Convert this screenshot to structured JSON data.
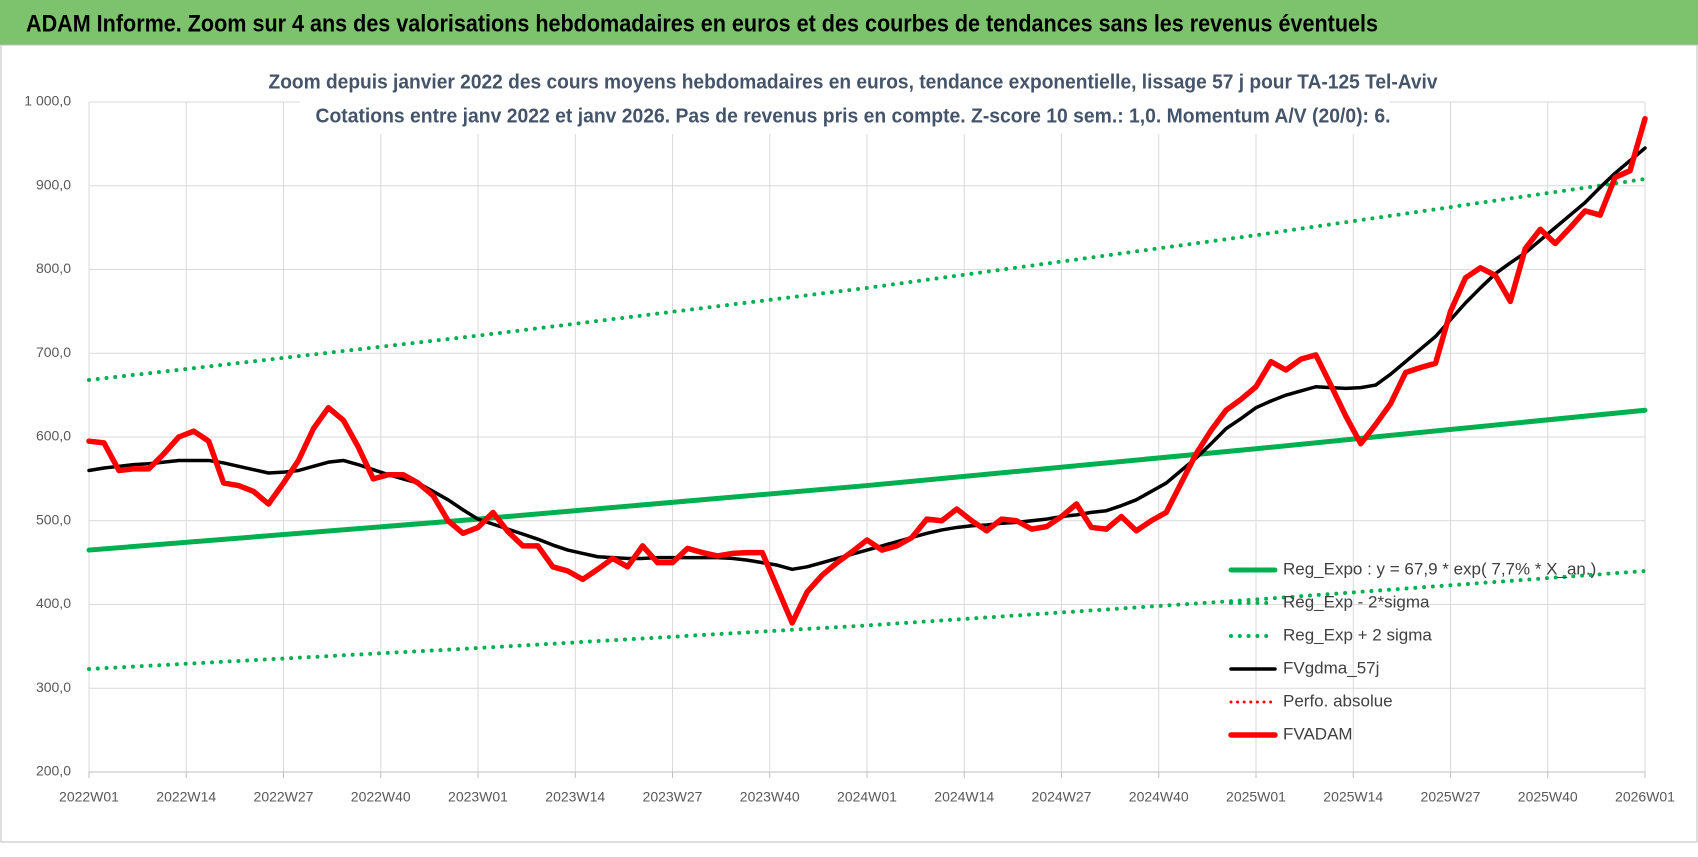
{
  "banner": "ADAM Informe. Zoom sur 4 ans des valorisations hebdomadaires en euros et des courbes de tendances sans les revenus éventuels",
  "chart_data": {
    "type": "line",
    "title": "Zoom depuis janvier 2022 des cours moyens hebdomadaires en euros, tendance exponentielle, lissage 57 j pour TA-125 Tel-Aviv",
    "subtitle": "Cotations entre janv 2022 et janv 2026. Pas de revenus pris en compte. Z-score 10 sem.: 1,0. Momentum A/V (20/0): 6.",
    "xlim": [
      0,
      208
    ],
    "xticks": [
      {
        "value": 0,
        "label": "2022W01"
      },
      {
        "value": 13,
        "label": "2022W14"
      },
      {
        "value": 26,
        "label": "2022W27"
      },
      {
        "value": 39,
        "label": "2022W40"
      },
      {
        "value": 52,
        "label": "2023W01"
      },
      {
        "value": 65,
        "label": "2023W14"
      },
      {
        "value": 78,
        "label": "2023W27"
      },
      {
        "value": 91,
        "label": "2023W40"
      },
      {
        "value": 104,
        "label": "2024W01"
      },
      {
        "value": 117,
        "label": "2024W14"
      },
      {
        "value": 130,
        "label": "2024W27"
      },
      {
        "value": 143,
        "label": "2024W40"
      },
      {
        "value": 156,
        "label": "2025W01"
      },
      {
        "value": 169,
        "label": "2025W14"
      },
      {
        "value": 182,
        "label": "2025W27"
      },
      {
        "value": 195,
        "label": "2025W40"
      },
      {
        "value": 208,
        "label": "2026W01"
      }
    ],
    "ylim": [
      200,
      1000
    ],
    "yticks": [
      {
        "value": 200,
        "label": "200,0"
      },
      {
        "value": 300,
        "label": "300,0"
      },
      {
        "value": 400,
        "label": "400,0"
      },
      {
        "value": 500,
        "label": "500,0"
      },
      {
        "value": 600,
        "label": "600,0"
      },
      {
        "value": 700,
        "label": "700,0"
      },
      {
        "value": 800,
        "label": "800,0"
      },
      {
        "value": 900,
        "label": "900,0"
      },
      {
        "value": 1000,
        "label": "1 000,0"
      }
    ],
    "grid": true,
    "legend": "lower-right",
    "x": [
      0,
      2,
      4,
      6,
      8,
      10,
      12,
      14,
      16,
      18,
      20,
      22,
      24,
      26,
      28,
      30,
      32,
      34,
      36,
      38,
      40,
      42,
      44,
      46,
      48,
      50,
      52,
      54,
      56,
      58,
      60,
      62,
      64,
      66,
      68,
      70,
      72,
      74,
      76,
      78,
      80,
      82,
      84,
      86,
      88,
      90,
      92,
      94,
      96,
      98,
      100,
      102,
      104,
      106,
      108,
      110,
      112,
      114,
      116,
      118,
      120,
      122,
      124,
      126,
      128,
      130,
      132,
      134,
      136,
      138,
      140,
      142,
      144,
      146,
      148,
      150,
      152,
      154,
      156,
      158,
      160,
      162,
      164,
      166,
      168,
      170,
      172,
      174,
      176,
      178,
      180,
      182,
      184,
      186,
      188,
      190,
      192,
      194,
      196,
      198,
      200,
      202,
      204,
      206,
      208
    ],
    "series": [
      {
        "name": "Reg_Expo : y = 67,9 * exp( 7,7% * X_an.)",
        "color": "#00b050",
        "style": "solid",
        "width": 5,
        "x": [
          0,
          52,
          104,
          156,
          208
        ],
        "values": [
          465,
          502,
          542,
          586,
          632
        ]
      },
      {
        "name": "Reg_Exp - 2*sigma",
        "color": "#00b050",
        "style": "dotted",
        "width": 4,
        "x": [
          0,
          52,
          104,
          156,
          208
        ],
        "values": [
          323,
          348,
          375,
          406,
          440
        ]
      },
      {
        "name": "Reg_Exp + 2 sigma",
        "color": "#00b050",
        "style": "dotted",
        "width": 4,
        "x": [
          0,
          52,
          104,
          156,
          208
        ],
        "values": [
          668,
          721,
          778,
          841,
          908
        ]
      },
      {
        "name": "FVgdma_57j",
        "color": "#000000",
        "style": "solid",
        "width": 3.5,
        "values": [
          560,
          563,
          565,
          567,
          568,
          570,
          572,
          572,
          572,
          569,
          565,
          561,
          557,
          558,
          560,
          565,
          570,
          572,
          567,
          561,
          555,
          550,
          545,
          535,
          525,
          513,
          502,
          496,
          490,
          484,
          478,
          471,
          465,
          461,
          457,
          456,
          455,
          455,
          456,
          456,
          456,
          456,
          456,
          455,
          453,
          450,
          447,
          442,
          445,
          450,
          455,
          460,
          465,
          470,
          475,
          480,
          485,
          489,
          492,
          494,
          495,
          497,
          498,
          500,
          502,
          505,
          507,
          510,
          512,
          518,
          525,
          535,
          545,
          560,
          575,
          592,
          610,
          622,
          635,
          643,
          650,
          655,
          660,
          659,
          658,
          659,
          662,
          675,
          690,
          705,
          720,
          740,
          760,
          778,
          795,
          808,
          820,
          835,
          850,
          865,
          880,
          898,
          915,
          930,
          945
        ]
      },
      {
        "name": "Perfo. absolue",
        "color": "#ff0000",
        "style": "dotted",
        "width": 3
      },
      {
        "name": "FVADAM",
        "color": "#ff0000",
        "style": "solid",
        "width": 5.5,
        "values": [
          595,
          593,
          560,
          562,
          562,
          580,
          600,
          607,
          595,
          545,
          542,
          535,
          520,
          545,
          572,
          610,
          635,
          620,
          588,
          550,
          555,
          555,
          545,
          530,
          500,
          485,
          492,
          510,
          487,
          470,
          470,
          445,
          440,
          430,
          442,
          455,
          445,
          470,
          450,
          450,
          467,
          462,
          458,
          461,
          462,
          462,
          420,
          378,
          415,
          435,
          450,
          463,
          477,
          465,
          470,
          480,
          502,
          500,
          514,
          500,
          488,
          502,
          500,
          490,
          493,
          505,
          520,
          492,
          490,
          505,
          488,
          500,
          510,
          545,
          580,
          608,
          632,
          645,
          660,
          690,
          680,
          693,
          698,
          662,
          625,
          592,
          615,
          640,
          677,
          683,
          688,
          750,
          790,
          802,
          793,
          762,
          825,
          848,
          831,
          850,
          870,
          865,
          910,
          918,
          980
        ]
      }
    ]
  }
}
